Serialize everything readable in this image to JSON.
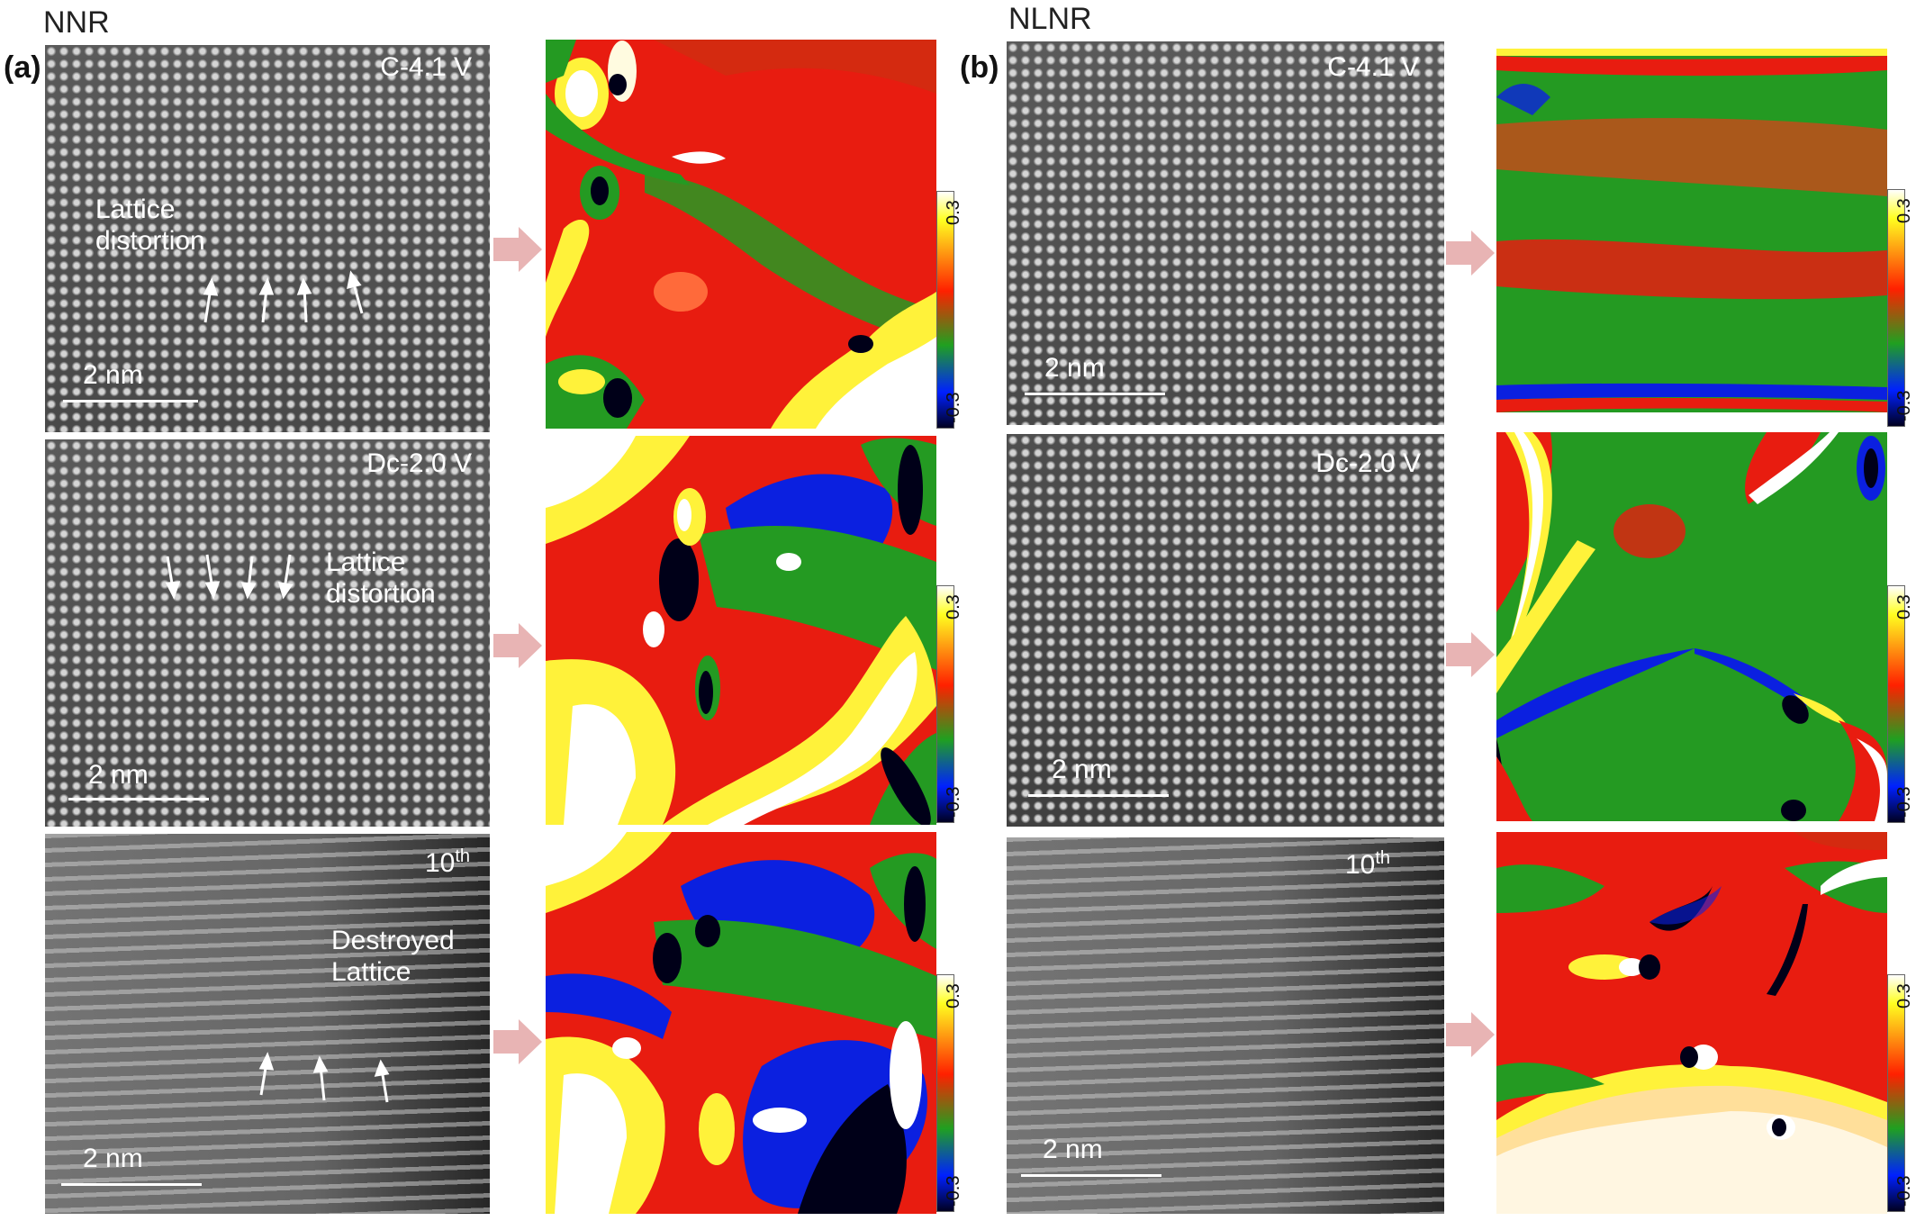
{
  "groups": {
    "a": {
      "letter": "(a)",
      "title": "NNR"
    },
    "b": {
      "letter": "(b)",
      "title": "NLNR"
    }
  },
  "rows": [
    {
      "a_label": "C-4.1 V",
      "b_label": "C-4.1 V"
    },
    {
      "a_label": "Dc-2.0 V",
      "b_label": "Dc-2.0 V"
    },
    {
      "a_label": "10",
      "a_sup": "th",
      "b_label": "10",
      "b_sup": "th"
    }
  ],
  "annotations": {
    "a_row1": "Lattice\ndistortion",
    "a_row2": "Lattice\ndistortion",
    "a_row3": "Destroyed\nLattice"
  },
  "scale_bar": "2 nm",
  "colorbar": {
    "max": "0.3",
    "min": "-0.3"
  },
  "colors": {
    "arrow": "#e8b4b4",
    "map_red": "#e81c10",
    "map_green": "#249a22",
    "map_blue": "#0b20e0",
    "map_yellow": "#fff23a"
  }
}
